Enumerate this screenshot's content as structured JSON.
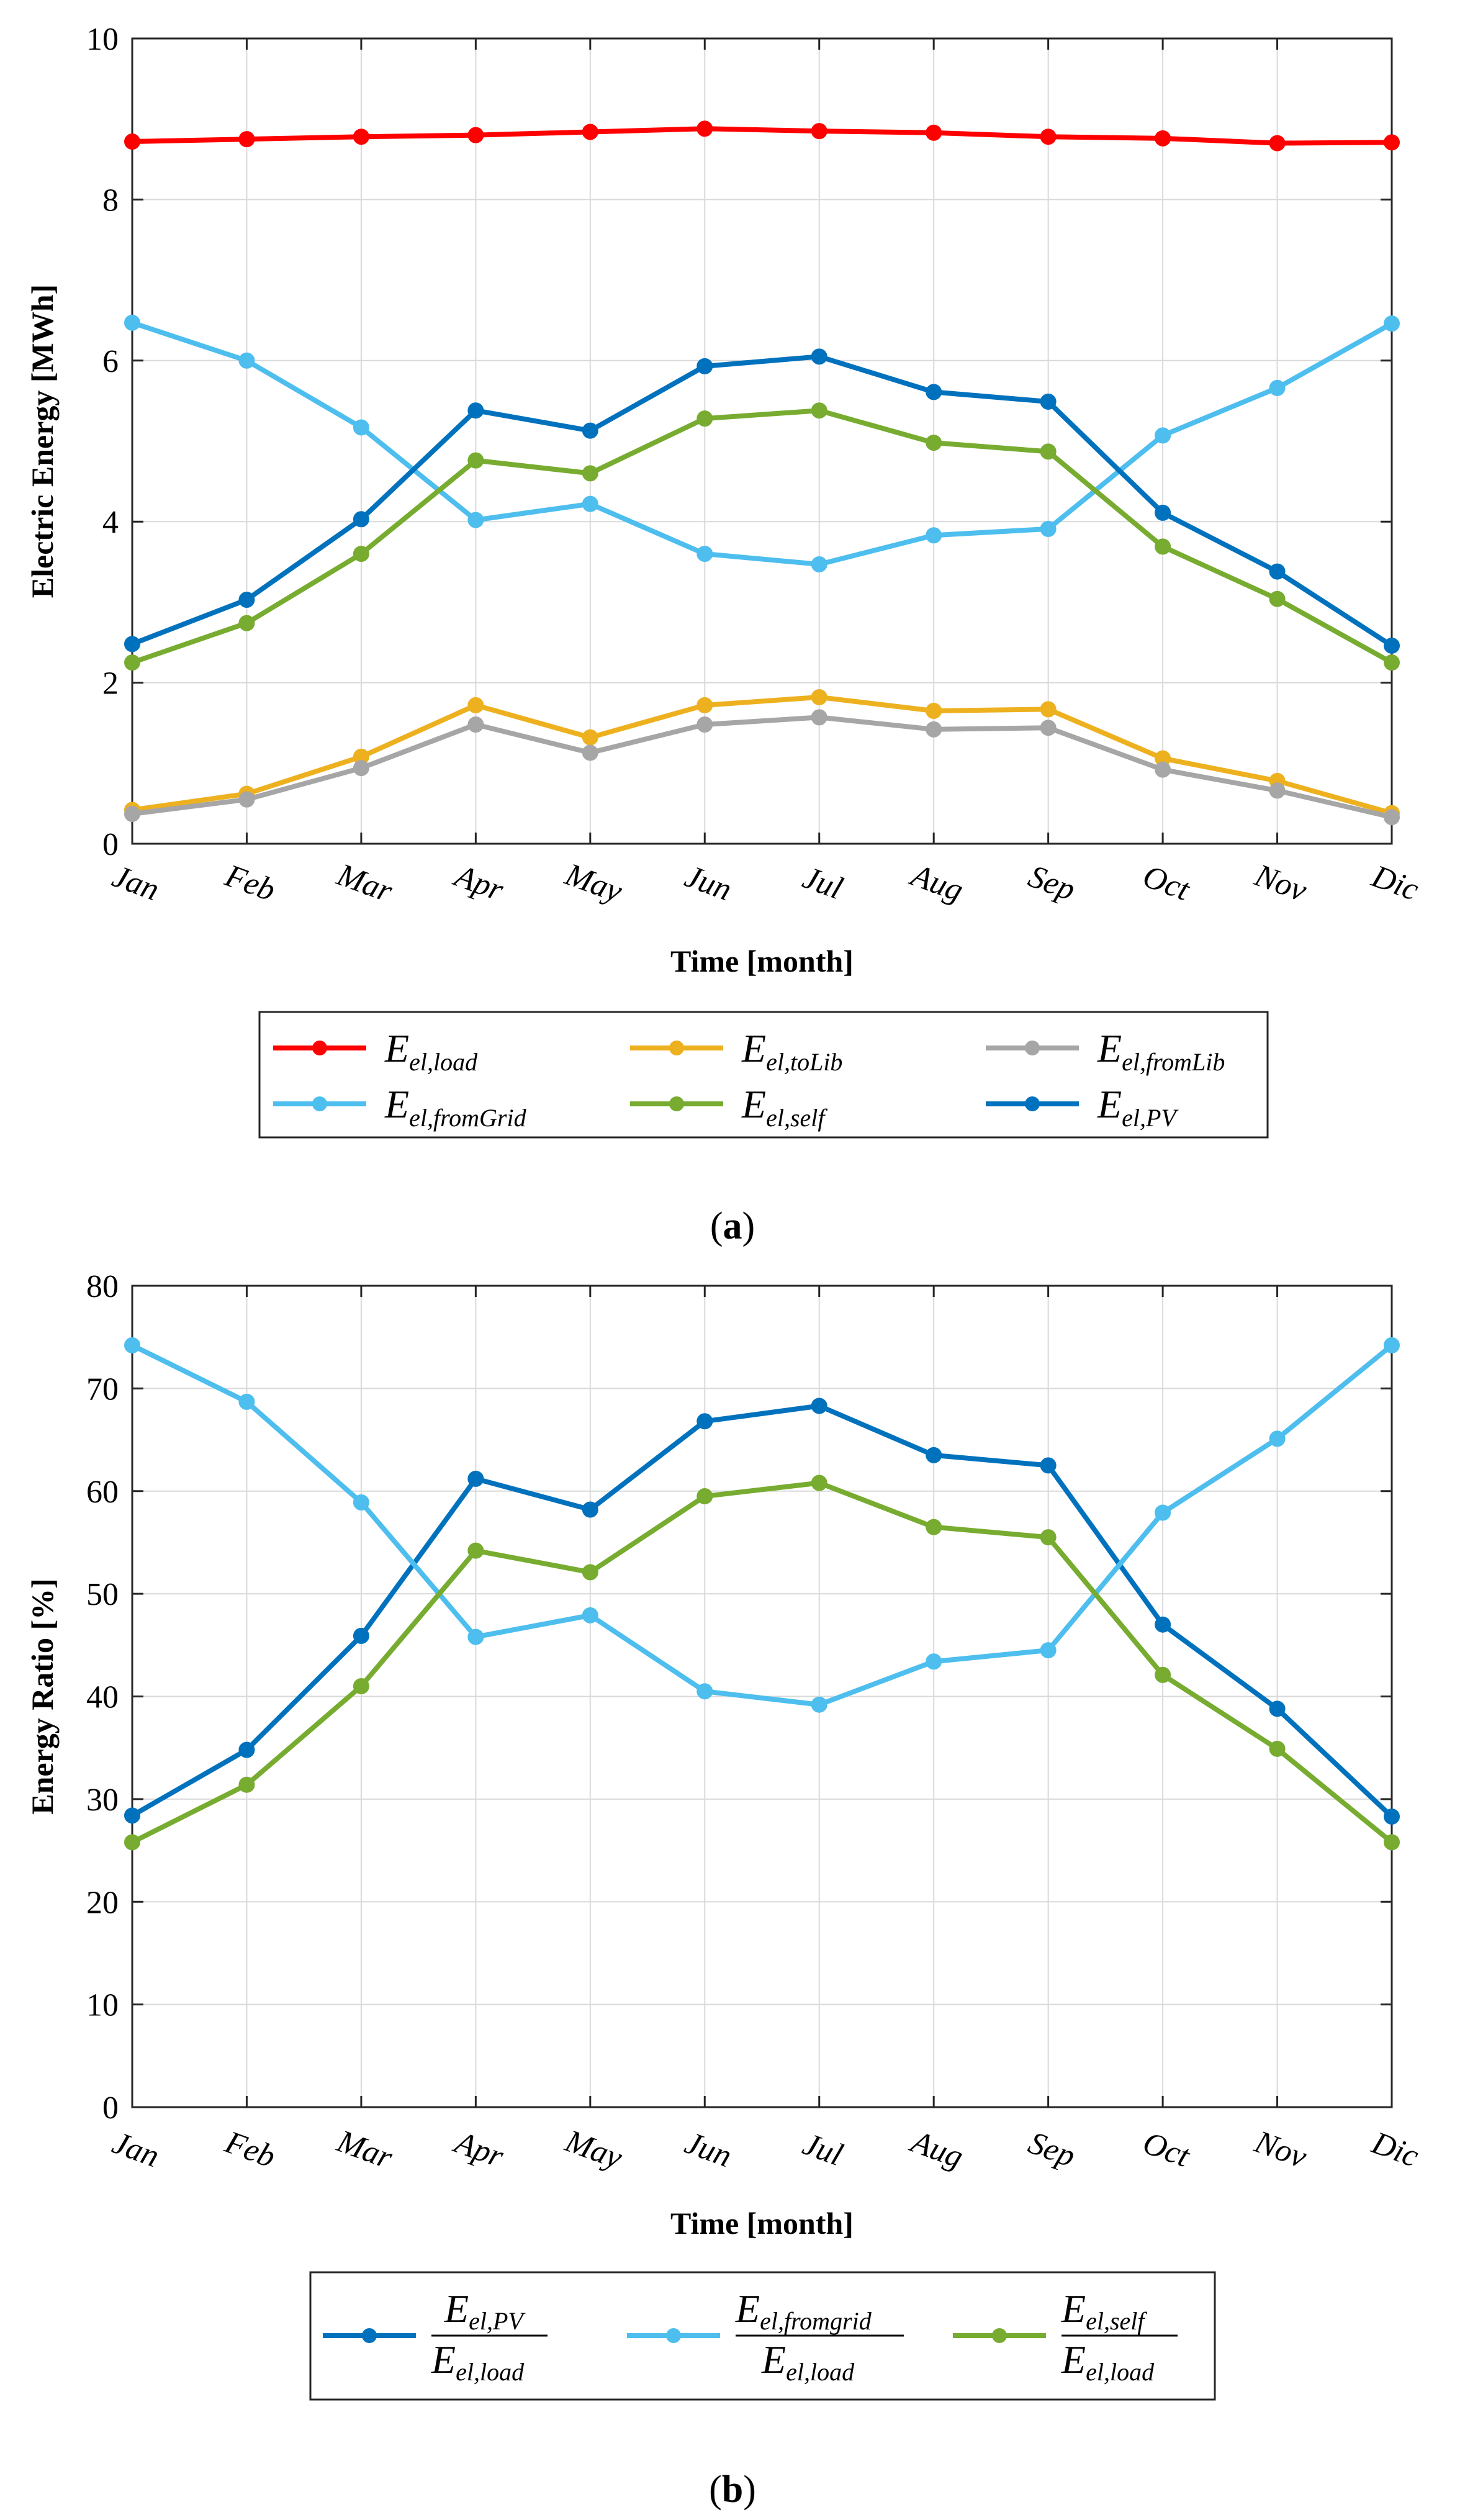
{
  "chart_data": [
    {
      "type": "line",
      "panel_label": "a",
      "xlabel": "Time [month]",
      "ylabel": "Electric Energy  [MWh]",
      "ylim": [
        0,
        10
      ],
      "yticks": [
        "0",
        "2",
        "4",
        "6",
        "8",
        "10"
      ],
      "grid": true,
      "legend_position": "bottom-outside",
      "categories": [
        "Jan",
        "Feb",
        "Mar",
        "Apr",
        "May",
        "Jun",
        "Jul",
        "Aug",
        "Sep",
        "Oct",
        "Nov",
        "Dic"
      ],
      "series": [
        {
          "name": "E_el,load",
          "base": "E",
          "sub": "el,load",
          "color": "#ff0000",
          "values": [
            8.72,
            8.75,
            8.78,
            8.8,
            8.84,
            8.88,
            8.85,
            8.83,
            8.78,
            8.76,
            8.7,
            8.71
          ]
        },
        {
          "name": "E_el,toLib",
          "base": "E",
          "sub": "el,toLib",
          "color": "#edb120",
          "values": [
            0.42,
            0.62,
            1.08,
            1.72,
            1.32,
            1.72,
            1.82,
            1.65,
            1.67,
            1.06,
            0.78,
            0.38
          ]
        },
        {
          "name": "E_el,fromLib",
          "base": "E",
          "sub": "el,fromLib",
          "color": "#a6a6a6",
          "values": [
            0.37,
            0.55,
            0.94,
            1.48,
            1.13,
            1.48,
            1.57,
            1.42,
            1.44,
            0.92,
            0.66,
            0.33
          ]
        },
        {
          "name": "E_el,fromGrid",
          "base": "E",
          "sub": "el,fromGrid",
          "color": "#4dbeee",
          "values": [
            6.47,
            6.0,
            5.17,
            4.02,
            4.22,
            3.6,
            3.47,
            3.83,
            3.91,
            5.07,
            5.66,
            6.46
          ]
        },
        {
          "name": "E_el,self",
          "base": "E",
          "sub": "el,self",
          "color": "#77ac30",
          "values": [
            2.25,
            2.74,
            3.6,
            4.76,
            4.6,
            5.28,
            5.38,
            4.98,
            4.87,
            3.69,
            3.04,
            2.25
          ]
        },
        {
          "name": "E_el,PV",
          "base": "E",
          "sub": "el,PV",
          "color": "#0072bd",
          "values": [
            2.48,
            3.03,
            4.03,
            5.38,
            5.13,
            5.93,
            6.05,
            5.61,
            5.49,
            4.11,
            3.38,
            2.46
          ]
        }
      ]
    },
    {
      "type": "line",
      "panel_label": "b",
      "xlabel": "Time [month]",
      "ylabel": "Energy Ratio [%]",
      "ylim": [
        0,
        80
      ],
      "yticks": [
        "0",
        "10",
        "20",
        "30",
        "40",
        "50",
        "60",
        "70",
        "80"
      ],
      "grid": true,
      "legend_position": "bottom-outside",
      "categories": [
        "Jan",
        "Feb",
        "Mar",
        "Apr",
        "May",
        "Jun",
        "Jul",
        "Aug",
        "Sep",
        "Oct",
        "Nov",
        "Dic"
      ],
      "series": [
        {
          "name": "E_el,PV / E_el,load",
          "num_base": "E",
          "num_sub": "el,PV",
          "den_base": "E",
          "den_sub": "el,load",
          "color": "#0072bd",
          "values": [
            28.4,
            34.8,
            45.9,
            61.2,
            58.2,
            66.8,
            68.3,
            63.5,
            62.5,
            47.0,
            38.8,
            28.3
          ]
        },
        {
          "name": "E_el,fromgrid / E_el,load",
          "num_base": "E",
          "num_sub": "el,fromgrid",
          "den_base": "E",
          "den_sub": "el,load",
          "color": "#4dbeee",
          "values": [
            74.2,
            68.7,
            58.9,
            45.8,
            47.9,
            40.5,
            39.2,
            43.4,
            44.5,
            57.9,
            65.1,
            74.2
          ]
        },
        {
          "name": "E_el,self / E_el,load",
          "num_base": "E",
          "num_sub": "el,self",
          "den_base": "E",
          "den_sub": "el,load",
          "color": "#77ac30",
          "values": [
            25.8,
            31.4,
            41.0,
            54.2,
            52.1,
            59.5,
            60.8,
            56.5,
            55.5,
            42.1,
            34.9,
            25.8
          ]
        }
      ]
    }
  ],
  "captions": {
    "a": "(a)",
    "b": "(b)"
  }
}
